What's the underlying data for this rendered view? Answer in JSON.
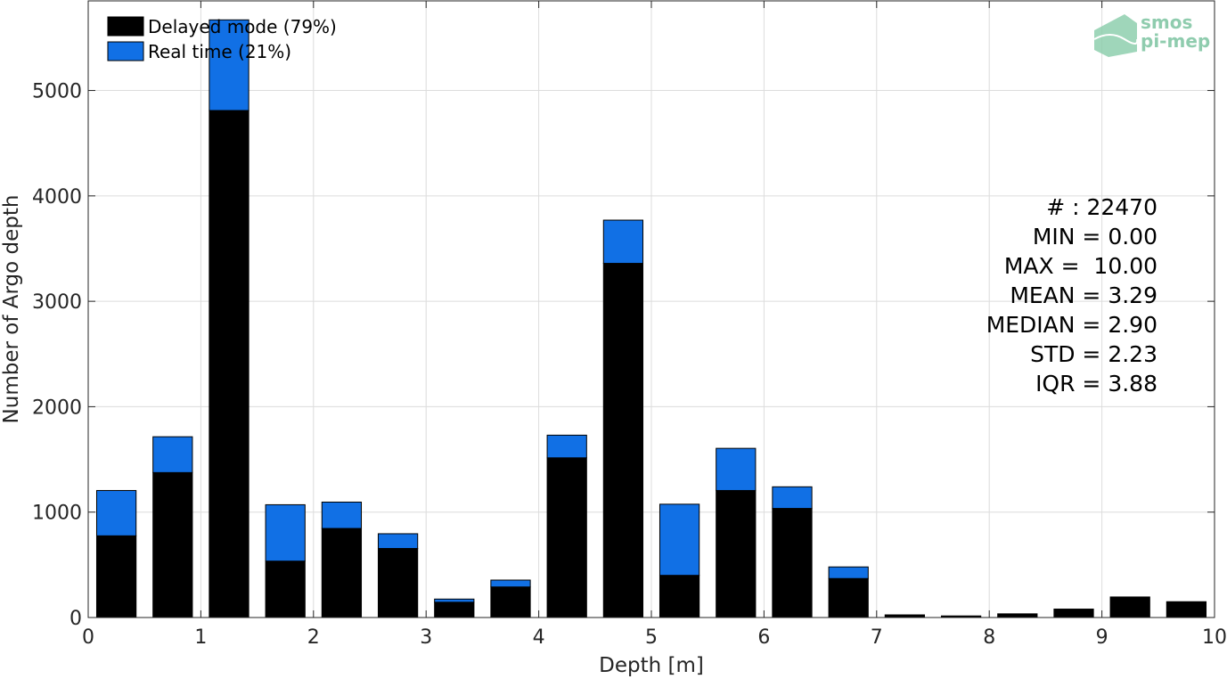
{
  "chart_data": {
    "type": "bar",
    "stacked": true,
    "x": [
      0.25,
      0.75,
      1.25,
      1.75,
      2.25,
      2.75,
      3.25,
      3.75,
      4.25,
      4.75,
      5.25,
      5.75,
      6.25,
      6.75,
      7.25,
      7.75,
      8.25,
      8.75,
      9.25,
      9.75
    ],
    "series": [
      {
        "name": "Delayed mode (79%)",
        "color": "#000000",
        "values": [
          775,
          1375,
          4810,
          535,
          845,
          655,
          145,
          290,
          1515,
          3360,
          400,
          1205,
          1035,
          370,
          25,
          15,
          35,
          80,
          195,
          150
        ]
      },
      {
        "name": "Real time (21%)",
        "color": "#1170e5",
        "values": [
          430,
          340,
          860,
          535,
          250,
          140,
          30,
          65,
          215,
          410,
          675,
          400,
          205,
          110,
          0,
          0,
          0,
          0,
          0,
          0
        ]
      }
    ],
    "xlabel": "Depth [m]",
    "ylabel": "Number of Argo depth",
    "xlim": [
      0,
      10
    ],
    "ylim": [
      0,
      5850
    ],
    "xticks": [
      "0",
      "1",
      "2",
      "3",
      "4",
      "5",
      "6",
      "7",
      "8",
      "9",
      "10"
    ],
    "xtick_values": [
      0,
      1,
      2,
      3,
      4,
      5,
      6,
      7,
      8,
      9,
      10
    ],
    "yticks": [
      "0",
      "1000",
      "2000",
      "3000",
      "4000",
      "5000"
    ],
    "ytick_values": [
      0,
      1000,
      2000,
      3000,
      4000,
      5000
    ],
    "grid": true,
    "legend_position": "top-left",
    "stats": [
      "# : 22470",
      "MIN = 0.00",
      "MAX =  10.00",
      "MEAN = 3.29",
      "MEDIAN = 2.90",
      "STD = 2.23",
      "IQR = 3.88"
    ]
  },
  "logo": {
    "line1": "smos",
    "line2": "pi-mep",
    "color": "#7cc4a0"
  }
}
